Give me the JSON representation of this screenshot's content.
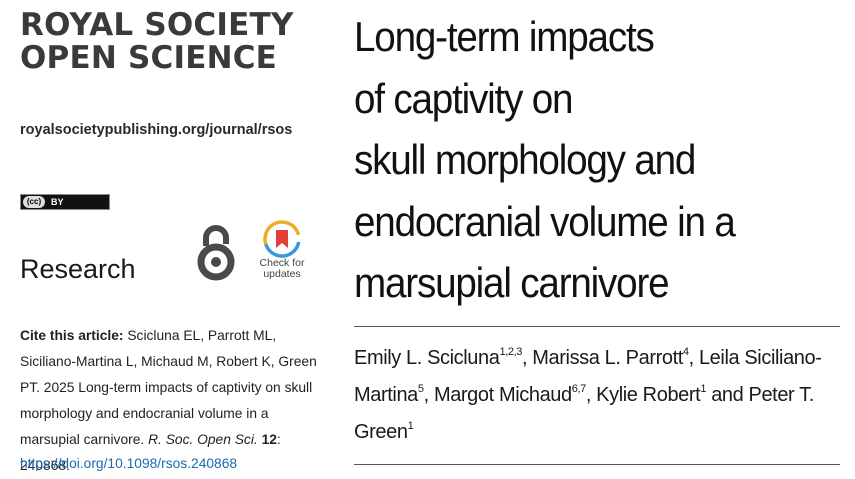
{
  "journal": {
    "name_line1": "ROYAL SOCIETY",
    "name_line2": "OPEN SCIENCE",
    "url": "royalsocietypublishing.org/journal/rsos"
  },
  "license": {
    "cc": "(cc)",
    "by": "BY"
  },
  "section": "Research",
  "check_updates": {
    "line1": "Check for",
    "line2": "updates"
  },
  "citation": {
    "label": "Cite this article:",
    "text": " Scicluna EL, Parrott ML, Siciliano-Martina L, Michaud M, Robert K, Green PT. 2025 Long-term impacts of captivity on skull morphology and endocranial volume in a marsupial carnivore. ",
    "journal_abbrev": "R. Soc. Open Sci.",
    "volume": "12",
    "article": ": 240868.",
    "doi": "https://doi.org/10.1098/rsos.240868"
  },
  "article": {
    "title_lines": [
      "Long-term impacts",
      "of captivity on",
      "skull morphology and",
      "endocranial volume in a",
      "marsupial carnivore"
    ]
  },
  "authors": [
    {
      "name": "Emily L. Scicluna",
      "aff": "1,2,3",
      "sep": ", "
    },
    {
      "name": "Marissa L. Parrott",
      "aff": "4",
      "sep": ", "
    },
    {
      "name": "Leila Siciliano-Martina",
      "aff": "5",
      "sep": ", "
    },
    {
      "name": "Margot Michaud",
      "aff": "6,7",
      "sep": ", "
    },
    {
      "name": "Kylie Robert",
      "aff": "1",
      "sep": " and "
    },
    {
      "name": "Peter T. Green",
      "aff": "1",
      "sep": ""
    }
  ],
  "colors": {
    "accent_link": "#1a6bb0",
    "oa_icon": "#4a4a4a"
  }
}
